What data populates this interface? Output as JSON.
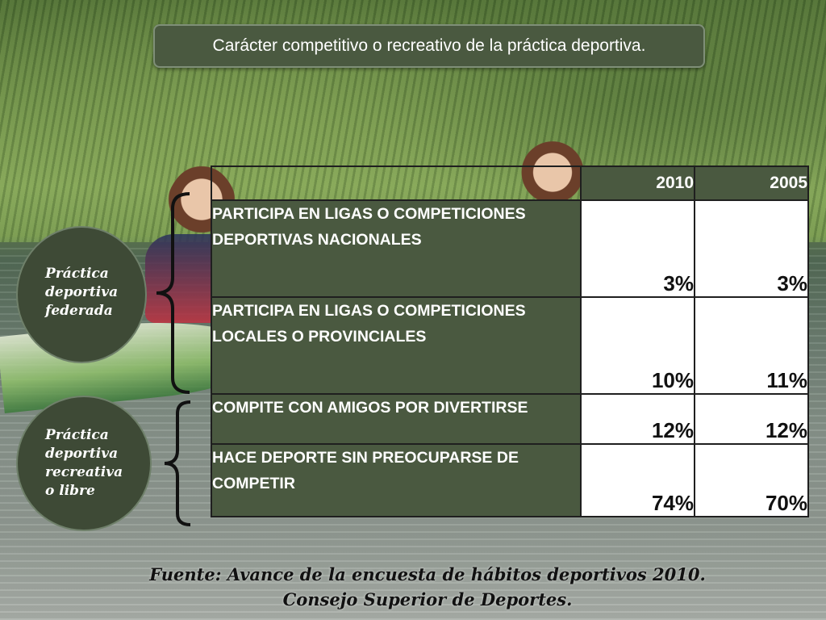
{
  "title": "Carácter competitivo o recreativo de la práctica deportiva.",
  "years": [
    "2010",
    "2005"
  ],
  "rows": [
    {
      "label": "PARTICIPA EN LIGAS O COMPETICIONES DEPORTIVAS NACIONALES",
      "v2010": "3%",
      "v2005": "3%"
    },
    {
      "label": "PARTICIPA EN LIGAS O COMPETICIONES LOCALES O PROVINCIALES",
      "v2010": "10%",
      "v2005": "11%"
    },
    {
      "label": "COMPITE CON AMIGOS POR DIVERTIRSE",
      "v2010": "12%",
      "v2005": "12%"
    },
    {
      "label": "HACE DEPORTE SIN PREOCUPARSE DE COMPETIR",
      "v2010": "74%",
      "v2005": "70%"
    }
  ],
  "groups": {
    "federada": [
      "Práctica",
      "deportiva",
      "federada"
    ],
    "recreativa": [
      "Práctica",
      "deportiva",
      "recreativa",
      "o libre"
    ]
  },
  "source": {
    "line1": "Fuente: Avance de la encuesta de hábitos deportivos 2010.",
    "line2": "Consejo Superior de Deportes."
  },
  "colors": {
    "panel": "#4a5940",
    "circle": "#3e4a36"
  }
}
